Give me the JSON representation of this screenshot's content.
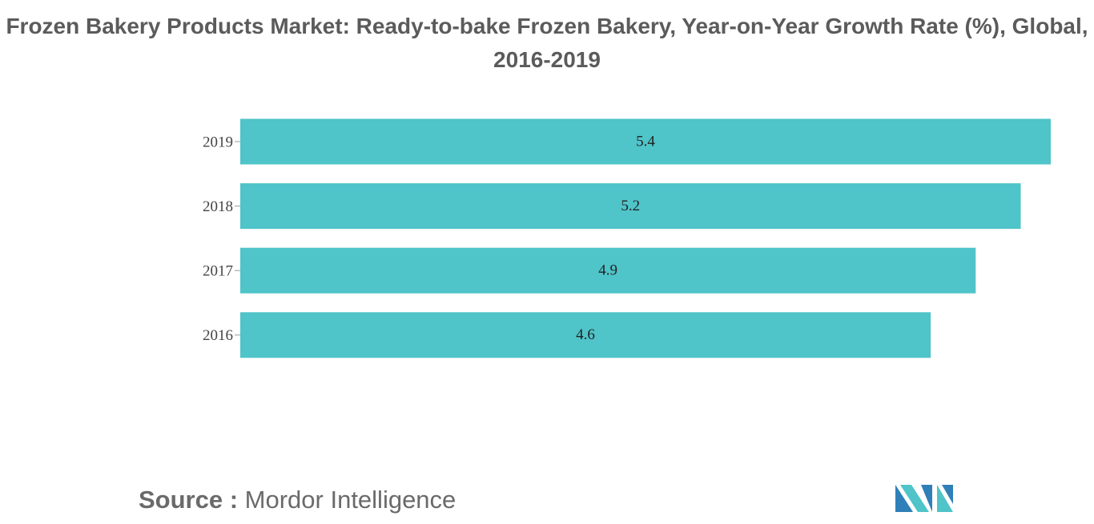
{
  "chart_data": {
    "type": "bar",
    "orientation": "horizontal",
    "title": "Frozen Bakery Products Market: Ready-to-bake Frozen Bakery, Year-on-Year Growth Rate (%), Global, 2016-2019",
    "categories": [
      "2016",
      "2017",
      "2018",
      "2019"
    ],
    "values": [
      4.6,
      4.9,
      5.2,
      5.4
    ],
    "color": "#4fc4c9",
    "source_label": "Source :",
    "source": "Mordor Intelligence"
  }
}
